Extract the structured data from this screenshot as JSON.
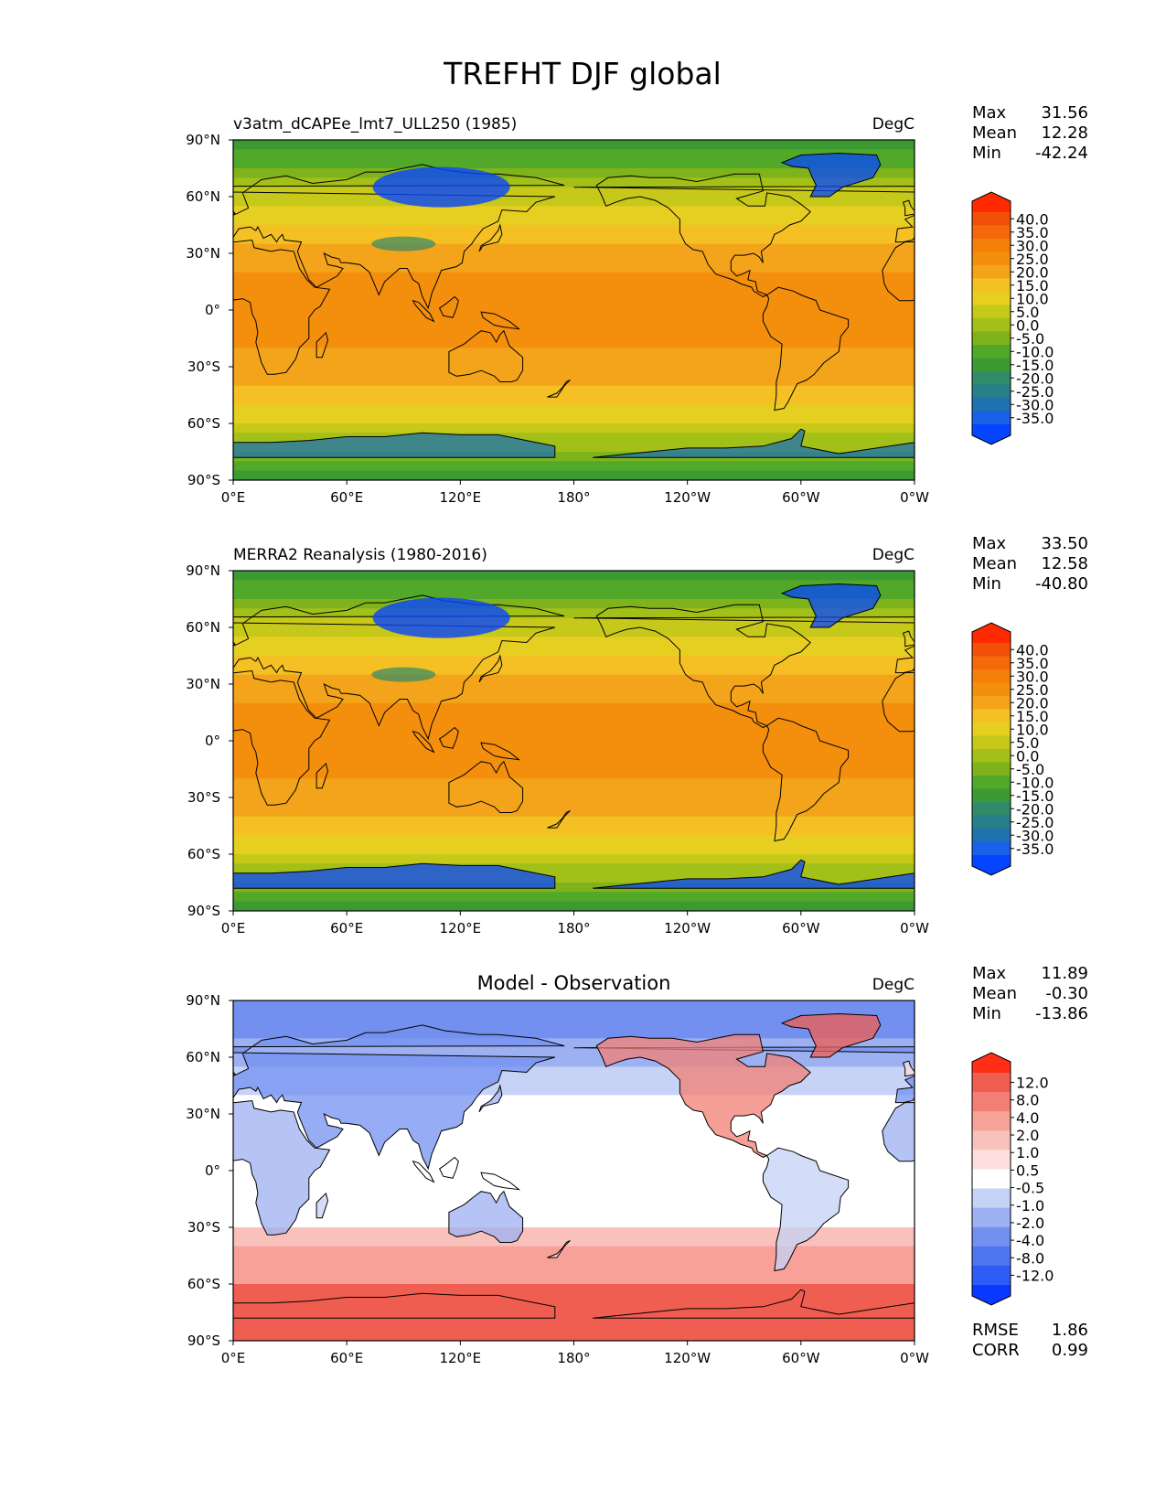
{
  "title": "TREFHT DJF global",
  "colors": {
    "abs_levels": [
      "#0645ff",
      "#1a60e8",
      "#1c73b0",
      "#277f88",
      "#318a6a",
      "#3b9a32",
      "#52a828",
      "#7eb31b",
      "#a3c018",
      "#c6c81a",
      "#e7cf22",
      "#f4c023",
      "#f3a41a",
      "#f48f0d",
      "#f48009",
      "#f46a0a",
      "#f25009",
      "#ff2a00"
    ],
    "diff_levels": [
      "#0938ff",
      "#2f5bf6",
      "#4f75f0",
      "#7390f0",
      "#9cb0f2",
      "#c6d2f6",
      "#ffffff",
      "#fde0dd",
      "#f9c1bb",
      "#f7a198",
      "#f37f74",
      "#ef5e50",
      "#ff2e17"
    ],
    "land": "#000000"
  },
  "chart_data": [
    {
      "type": "heatmap",
      "panel_title": "v3atm_dCAPEe_lmt7_ULL250 (1985)",
      "units": "DegC",
      "stats": [
        {
          "label": "Max",
          "value": "31.56"
        },
        {
          "label": "Mean",
          "value": "12.28"
        },
        {
          "label": "Min",
          "value": "-42.24"
        }
      ],
      "colorbar_ticks": [
        "40.0",
        "35.0",
        "30.0",
        "25.0",
        "20.0",
        "15.0",
        "10.0",
        "5.0",
        "0.0",
        "-5.0",
        "-10.0",
        "-15.0",
        "-20.0",
        "-25.0",
        "-30.0",
        "-35.0"
      ],
      "lat_ticks": [
        "90°N",
        "60°N",
        "30°N",
        "0°",
        "30°S",
        "60°S",
        "90°S"
      ],
      "lon_ticks": [
        "0°E",
        "60°E",
        "120°E",
        "180°",
        "120°W",
        "60°W",
        "0°W"
      ],
      "xlim": [
        0,
        360
      ],
      "ylim": [
        -90,
        90
      ]
    },
    {
      "type": "heatmap",
      "panel_title": "MERRA2 Reanalysis (1980-2016)",
      "units": "DegC",
      "stats": [
        {
          "label": "Max",
          "value": "33.50"
        },
        {
          "label": "Mean",
          "value": "12.58"
        },
        {
          "label": "Min",
          "value": "-40.80"
        }
      ],
      "colorbar_ticks": [
        "40.0",
        "35.0",
        "30.0",
        "25.0",
        "20.0",
        "15.0",
        "10.0",
        "5.0",
        "0.0",
        "-5.0",
        "-10.0",
        "-15.0",
        "-20.0",
        "-25.0",
        "-30.0",
        "-35.0"
      ],
      "lat_ticks": [
        "90°N",
        "60°N",
        "30°N",
        "0°",
        "30°S",
        "60°S",
        "90°S"
      ],
      "lon_ticks": [
        "0°E",
        "60°E",
        "120°E",
        "180°",
        "120°W",
        "60°W",
        "0°W"
      ],
      "xlim": [
        0,
        360
      ],
      "ylim": [
        -90,
        90
      ]
    },
    {
      "type": "heatmap",
      "panel_title": "Model - Observation",
      "units": "DegC",
      "stats": [
        {
          "label": "Max",
          "value": "11.89"
        },
        {
          "label": "Mean",
          "value": "-0.30"
        },
        {
          "label": "Min",
          "value": "-13.86"
        }
      ],
      "colorbar_ticks": [
        "12.0",
        "8.0",
        "4.0",
        "2.0",
        "1.0",
        "0.5",
        "-0.5",
        "-1.0",
        "-2.0",
        "-4.0",
        "-8.0",
        "-12.0"
      ],
      "lat_ticks": [
        "90°N",
        "60°N",
        "30°N",
        "0°",
        "30°S",
        "60°S",
        "90°S"
      ],
      "lon_ticks": [
        "0°E",
        "60°E",
        "120°E",
        "180°",
        "120°W",
        "60°W",
        "0°W"
      ],
      "xlim": [
        0,
        360
      ],
      "ylim": [
        -90,
        90
      ],
      "extra_stats": [
        {
          "label": "RMSE",
          "value": "1.86"
        },
        {
          "label": "CORR",
          "value": "0.99"
        }
      ]
    }
  ]
}
